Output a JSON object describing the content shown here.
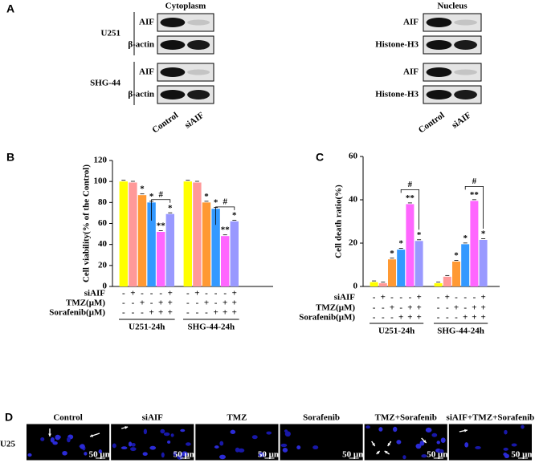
{
  "panel_a": {
    "label": "A",
    "blots": [
      {
        "title": "Cytoplasm",
        "lanes": [
          "Control",
          "siAIF"
        ],
        "groups": [
          {
            "cell": "U251",
            "proteins": [
              "AIF",
              "β-actin"
            ]
          },
          {
            "cell": "SHG-44",
            "proteins": [
              "AIF",
              "β-actin"
            ]
          }
        ]
      },
      {
        "title": "Nucleus",
        "lanes": [
          "Control",
          "siAIF"
        ],
        "groups": [
          {
            "proteins": [
              "AIF",
              "Histone-H3"
            ]
          },
          {
            "proteins": [
              "AIF",
              "Histone-H3"
            ]
          }
        ]
      }
    ]
  },
  "chart_data": [
    {
      "type": "bar",
      "label": "B",
      "ylabel": "Cell viability(% of the Control)",
      "categories": [
        "U251-24h",
        "SHG-44-24h"
      ],
      "series": [
        {
          "color": "#ffff00",
          "values": [
            100,
            100
          ],
          "annotations": [
            null,
            null
          ]
        },
        {
          "color": "#ff9999",
          "values": [
            99,
            99
          ],
          "annotations": [
            null,
            null
          ]
        },
        {
          "color": "#ff9933",
          "values": [
            87,
            80
          ],
          "annotations": [
            "*",
            "*"
          ]
        },
        {
          "color": "#3399ff",
          "values": [
            80,
            74
          ],
          "annotations": [
            "*",
            "*"
          ]
        },
        {
          "color": "#ff66ff",
          "values": [
            52,
            48
          ],
          "annotations": [
            "**",
            "**"
          ]
        },
        {
          "color": "#9999ff",
          "values": [
            69,
            62
          ],
          "annotations": [
            "*",
            "*"
          ]
        }
      ],
      "comparisons": [
        "#",
        "#"
      ],
      "conditions": [
        {
          "name": "siAIF",
          "signs": [
            "-",
            "+",
            "-",
            "-",
            "-",
            "+"
          ]
        },
        {
          "name": "TMZ(μM)",
          "signs": [
            "-",
            "-",
            "+",
            "-",
            "+",
            "+"
          ]
        },
        {
          "name": "Sorafenib(μM)",
          "signs": [
            "-",
            "-",
            "-",
            "+",
            "+",
            "+"
          ]
        }
      ],
      "ylim": [
        0,
        120
      ],
      "yticks": [
        0,
        20,
        40,
        60,
        80,
        100,
        120
      ]
    },
    {
      "type": "bar",
      "label": "C",
      "ylabel": "Cell death ratio(%)",
      "categories": [
        "U251-24h",
        "SHG-44-24h"
      ],
      "series": [
        {
          "color": "#ffff00",
          "values": [
            2,
            1.5
          ],
          "annotations": [
            null,
            null
          ]
        },
        {
          "color": "#ff9999",
          "values": [
            1.5,
            4.5
          ],
          "annotations": [
            null,
            null
          ]
        },
        {
          "color": "#ff9933",
          "values": [
            12.5,
            11.5
          ],
          "annotations": [
            "*",
            "*"
          ]
        },
        {
          "color": "#3399ff",
          "values": [
            17,
            19.5
          ],
          "annotations": [
            "*",
            "*"
          ]
        },
        {
          "color": "#ff66ff",
          "values": [
            38,
            39.5
          ],
          "annotations": [
            "**",
            "**"
          ]
        },
        {
          "color": "#9999ff",
          "values": [
            21,
            21.5
          ],
          "annotations": [
            "*",
            "*"
          ]
        }
      ],
      "comparisons": [
        "#",
        "#"
      ],
      "conditions": [
        {
          "name": "siAIF",
          "signs": [
            "-",
            "+",
            "-",
            "-",
            "-",
            "+"
          ]
        },
        {
          "name": "TMZ(μM)",
          "signs": [
            "-",
            "-",
            "+",
            "-",
            "+",
            "+"
          ]
        },
        {
          "name": "Sorafenib(μM)",
          "signs": [
            "-",
            "-",
            "-",
            "+",
            "+",
            "+"
          ]
        }
      ],
      "ylim": [
        0,
        60
      ],
      "yticks": [
        0,
        20,
        40,
        60
      ]
    }
  ],
  "panel_d": {
    "label": "D",
    "row": "U25",
    "columns": [
      "Control",
      "siAIF",
      "TMZ",
      "Sorafenib",
      "TMZ+Sorafenib",
      "siAIF+TMZ+Sorafenib"
    ],
    "scale_bar": "50 μm"
  }
}
